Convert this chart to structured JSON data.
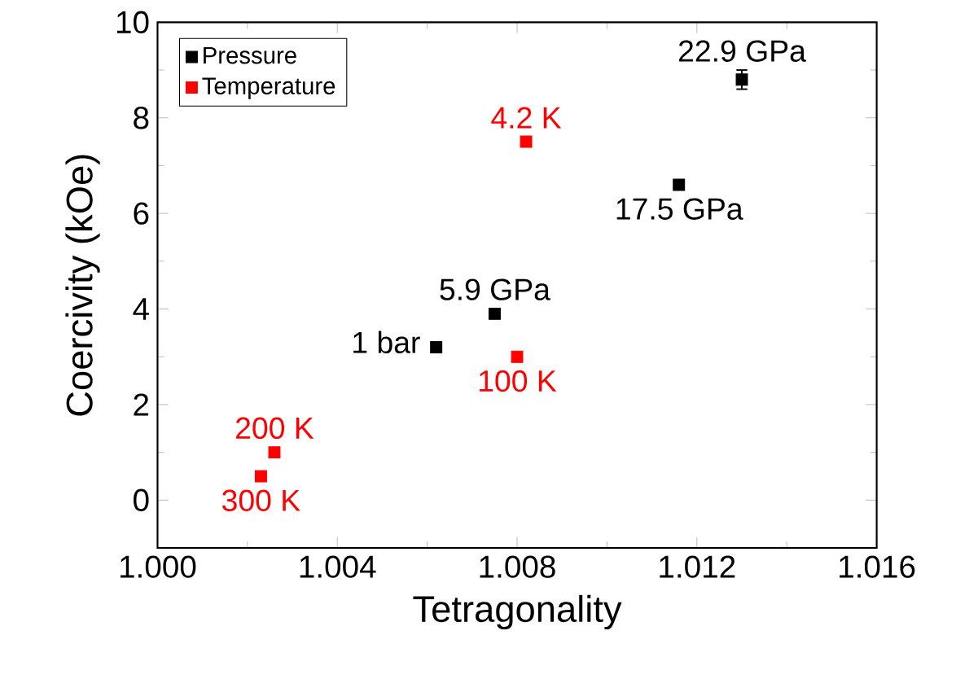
{
  "chart_data": {
    "type": "scatter",
    "xlabel": "Tetragonality",
    "ylabel": "Coercivity (kOe)",
    "xlim": [
      1.0,
      1.016
    ],
    "ylim": [
      -1,
      10
    ],
    "xticks": [
      {
        "value": 1.0,
        "label": "1.000"
      },
      1.004,
      1.008,
      1.012,
      1.016
    ],
    "yticks": [
      0,
      2,
      4,
      6,
      8,
      10
    ],
    "legend": "top left",
    "marker": "square",
    "grid": false,
    "series": [
      {
        "name": "Pressure",
        "color": "#000000",
        "x": [
          1.0062,
          1.0075,
          1.0116,
          1.013
        ],
        "values": [
          3.2,
          3.9,
          6.6,
          8.8
        ],
        "errors": [
          null,
          null,
          null,
          0.2
        ]
      },
      {
        "name": "Temperature",
        "color": "#ff0000",
        "x": [
          1.0082,
          1.008,
          1.0026,
          1.0023
        ],
        "values": [
          7.5,
          3.0,
          1.0,
          0.5
        ]
      }
    ],
    "annotations": [
      {
        "text": "1 bar",
        "x": 1.0062,
        "y": 3.2
      },
      {
        "text": "5.9 GPa",
        "x": 1.0075,
        "y": 3.9
      },
      {
        "text": "17.5 GPa",
        "x": 1.0116,
        "y": 6.6
      },
      {
        "text": "22.9 GPa",
        "x": 1.013,
        "y": 8.8
      },
      {
        "text": "4.2 K",
        "x": 1.0082,
        "y": 7.5
      },
      {
        "text": "100 K",
        "x": 1.008,
        "y": 3.0
      },
      {
        "text": "200 K",
        "x": 1.0026,
        "y": 1.0
      },
      {
        "text": "300 K",
        "x": 1.0023,
        "y": 0.5
      }
    ]
  }
}
